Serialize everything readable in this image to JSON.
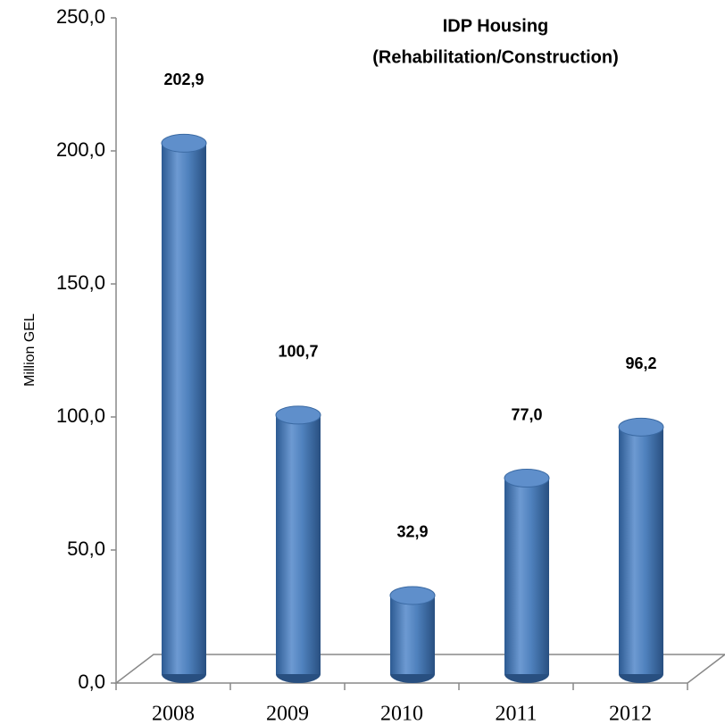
{
  "chart_data": {
    "type": "bar",
    "title": "IDP Housing",
    "subtitle": "(Rehabilitation/Construction)",
    "y_label": "Million GEL",
    "categories": [
      "2008",
      "2009",
      "2010",
      "2011",
      "2012"
    ],
    "values": [
      202.9,
      100.7,
      32.9,
      77.0,
      96.2
    ],
    "value_labels": [
      "202,9",
      "100,7",
      "32,9",
      "77,0",
      "96,2"
    ],
    "color": "#4f81bd",
    "ylim": [
      0,
      250
    ],
    "yticks": [
      {
        "value": 0,
        "label": "0,0"
      },
      {
        "value": 50,
        "label": "50,0"
      },
      {
        "value": 100,
        "label": "100,0"
      },
      {
        "value": 150,
        "label": "150,0"
      },
      {
        "value": 200,
        "label": "200,0"
      },
      {
        "value": 250,
        "label": "250,0"
      }
    ]
  }
}
